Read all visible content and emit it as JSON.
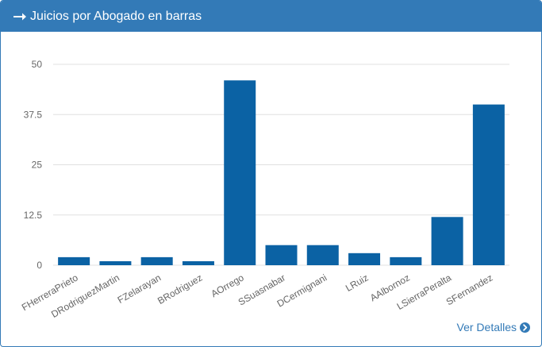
{
  "panel": {
    "title": "Juicios por Abogado en barras",
    "footer_link": "Ver Detalles",
    "accent_color": "#337ab7",
    "bar_color": "#0b62a4"
  },
  "chart_data": {
    "type": "bar",
    "categories": [
      "FHerreraPrieto",
      "DRodriguezMartin",
      "FZelarayan",
      "BRodriguez",
      "AOrrego",
      "SSuasnabar",
      "DCermignani",
      "LRuiz",
      "AAlbornoz",
      "LSierraPeralta",
      "SFernandez"
    ],
    "series": [
      {
        "values": [
          2,
          1,
          2,
          1,
          46,
          5,
          5,
          3,
          2,
          12,
          40
        ]
      }
    ],
    "ylim": [
      0,
      50
    ],
    "yticks": [
      "0",
      "12.5",
      "25",
      "37.5",
      "50"
    ],
    "grid": true
  }
}
